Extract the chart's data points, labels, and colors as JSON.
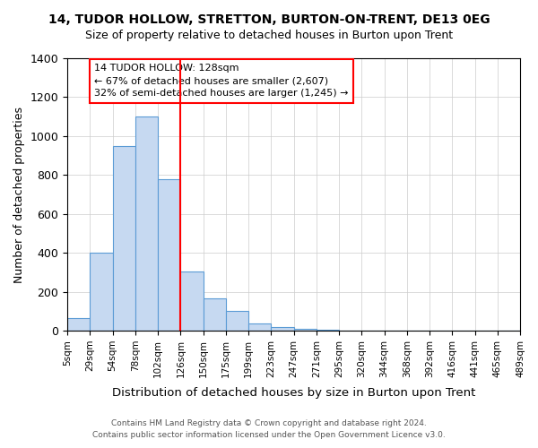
{
  "title": "14, TUDOR HOLLOW, STRETTON, BURTON-ON-TRENT, DE13 0EG",
  "subtitle": "Size of property relative to detached houses in Burton upon Trent",
  "xlabel": "Distribution of detached houses by size in Burton upon Trent",
  "ylabel": "Number of detached properties",
  "bin_labels": [
    "5sqm",
    "29sqm",
    "54sqm",
    "78sqm",
    "102sqm",
    "126sqm",
    "150sqm",
    "175sqm",
    "199sqm",
    "223sqm",
    "247sqm",
    "271sqm",
    "295sqm",
    "320sqm",
    "344sqm",
    "368sqm",
    "392sqm",
    "416sqm",
    "441sqm",
    "465sqm",
    "489sqm"
  ],
  "bar_heights": [
    65,
    400,
    950,
    1100,
    780,
    305,
    165,
    100,
    35,
    18,
    10,
    5,
    2,
    2,
    1,
    0,
    0,
    0,
    0,
    0
  ],
  "bar_color": "#c6d9f1",
  "bar_edge_color": "#5b9bd5",
  "vline_x": 5,
  "vline_color": "red",
  "ylim": [
    0,
    1400
  ],
  "yticks": [
    0,
    200,
    400,
    600,
    800,
    1000,
    1200,
    1400
  ],
  "annotation_title": "14 TUDOR HOLLOW: 128sqm",
  "annotation_line1": "← 67% of detached houses are smaller (2,607)",
  "annotation_line2": "32% of semi-detached houses are larger (1,245) →",
  "footer_line1": "Contains HM Land Registry data © Crown copyright and database right 2024.",
  "footer_line2": "Contains public sector information licensed under the Open Government Licence v3.0.",
  "background_color": "#ffffff"
}
